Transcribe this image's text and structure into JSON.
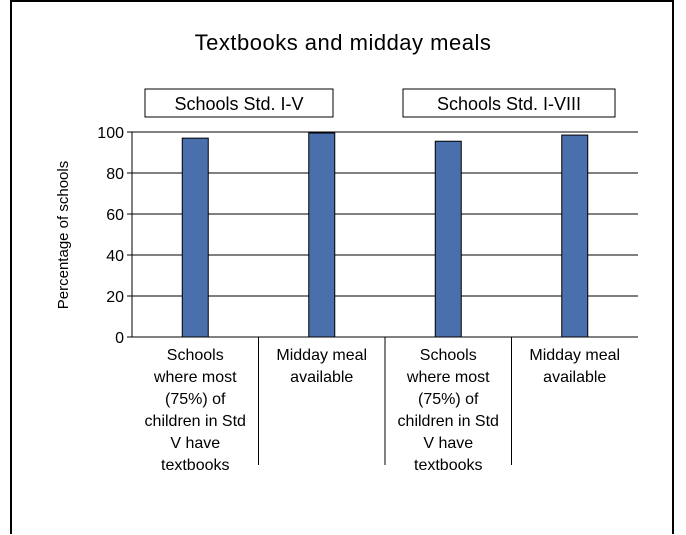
{
  "chart_data": {
    "type": "bar",
    "title": "Textbooks and midday meals",
    "ylabel": "Percentage of schools",
    "xlabel": "",
    "ylim": [
      0,
      100
    ],
    "yticks": [
      0,
      20,
      40,
      60,
      80,
      100
    ],
    "grid": true,
    "bar_color": "#4a6fad",
    "groups": [
      {
        "label": "Schools Std. I-V"
      },
      {
        "label": "Schools Std. I-VIII"
      }
    ],
    "categories": [
      "Schools where most (75%) of children in Std V have textbooks",
      "Midday meal available",
      "Schools where most (75%) of children in Std V have textbooks",
      "Midday meal available"
    ],
    "category_lines": [
      [
        "Schools",
        "where most",
        "(75%) of",
        "children in Std",
        "V have",
        "textbooks"
      ],
      [
        "Midday meal",
        "available"
      ],
      [
        "Schools",
        "where most",
        "(75%) of",
        "children in Std",
        "V have",
        "textbooks"
      ],
      [
        "Midday meal",
        "available"
      ]
    ],
    "values": [
      97,
      99.5,
      95.5,
      98.5
    ]
  }
}
